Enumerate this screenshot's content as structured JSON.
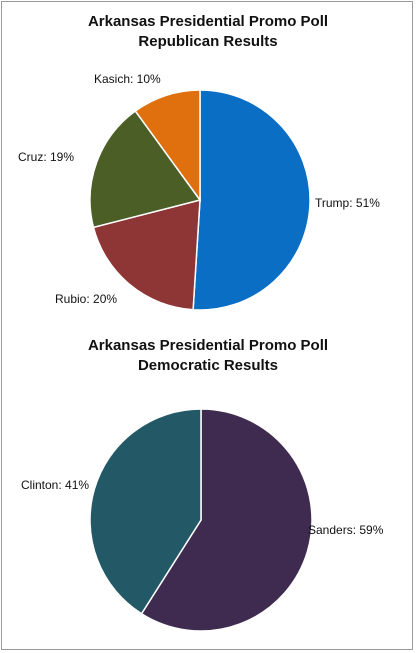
{
  "chart_data": [
    {
      "type": "pie",
      "title": [
        "Arkansas Presidential Promo Poll",
        "Republican Results"
      ],
      "slices": [
        {
          "name": "Trump",
          "value": 51,
          "label": "Trump: 51%",
          "color": "#0a6ec4"
        },
        {
          "name": "Rubio",
          "value": 20,
          "label": "Rubio: 20%",
          "color": "#8e3535"
        },
        {
          "name": "Cruz",
          "value": 19,
          "label": "Cruz: 19%",
          "color": "#4a5e26"
        },
        {
          "name": "Kasich",
          "value": 10,
          "label": "Kasich: 10%",
          "color": "#e0700e"
        }
      ],
      "start_angle": "12 o'clock",
      "direction": "clockwise",
      "legend": "none"
    },
    {
      "type": "pie",
      "title": [
        "Arkansas Presidential Promo Poll",
        "Democratic Results"
      ],
      "slices": [
        {
          "name": "Sanders",
          "value": 59,
          "label": "Sanders: 59%",
          "color": "#3e2b4f"
        },
        {
          "name": "Clinton",
          "value": 41,
          "label": "Clinton: 41%",
          "color": "#235866"
        }
      ],
      "start_angle": "12 o'clock",
      "direction": "clockwise",
      "legend": "none"
    }
  ]
}
